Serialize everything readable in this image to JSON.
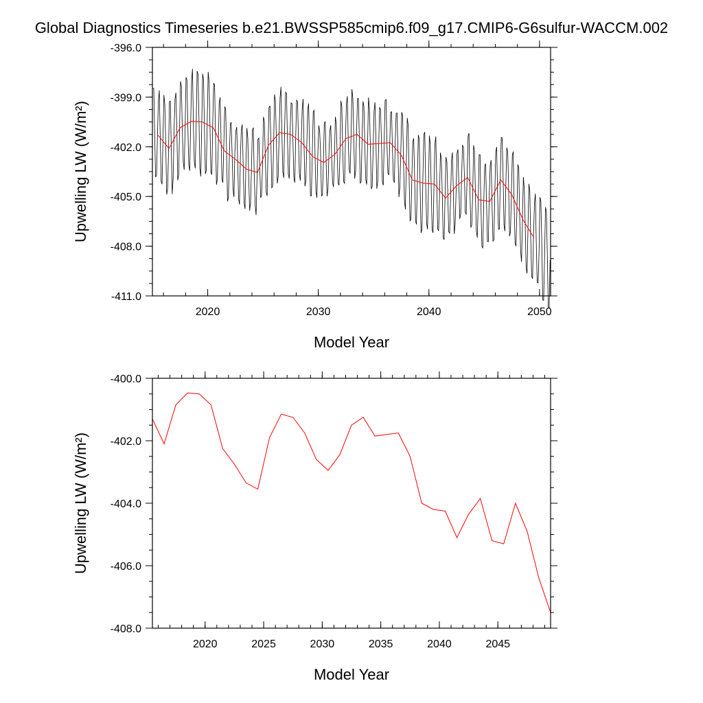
{
  "title": "Global Diagnostics Timeseries b.e21.BWSSP585cmip6.f09_g17.CMIP6-G6sulfur-WACCM.002",
  "colors": {
    "monthly": "#000000",
    "annual": "#ff0000"
  },
  "chart_data": [
    {
      "type": "line",
      "xlabel": "Model Year",
      "ylabel": "Upwelling LW (W/m²)",
      "xlim": [
        2015,
        2051
      ],
      "ylim": [
        -411.0,
        -396.0
      ],
      "xticks": [
        2020,
        2030,
        2040,
        2050
      ],
      "xtick_labels": [
        "2020",
        "2030",
        "2040",
        "2050"
      ],
      "yticks": [
        -396.0,
        -399.0,
        -402.0,
        -405.0,
        -408.0,
        -411.0
      ],
      "ytick_labels": [
        "-396.0",
        "-399.0",
        "-402.0",
        "-405.0",
        "-408.0",
        "-411.0"
      ],
      "grid": false,
      "series": [
        {
          "style": "monthly",
          "x_start": 2015.04,
          "x_step": 0.08333,
          "seasonal_amplitude": [
            3.0,
            3.3,
            3.2,
            3.4,
            3.6,
            3.4,
            3.0,
            2.6,
            2.6,
            2.8,
            3.0,
            3.1,
            2.8,
            2.9,
            3.0,
            2.6,
            2.5,
            2.8,
            3.1,
            3.0,
            2.8,
            2.7,
            2.9,
            3.2,
            3.3,
            3.1,
            2.9,
            2.8,
            3.0,
            3.1,
            3.0,
            3.2,
            3.0,
            2.9,
            3.1,
            3.2
          ]
        },
        {
          "style": "annual",
          "x": [
            2015.5,
            2016.5,
            2017.5,
            2018.5,
            2019.5,
            2020.5,
            2021.5,
            2022.5,
            2023.5,
            2024.5,
            2025.5,
            2026.5,
            2027.5,
            2028.5,
            2029.5,
            2030.5,
            2031.5,
            2032.5,
            2033.5,
            2034.5,
            2035.5,
            2036.5,
            2037.5,
            2038.5,
            2039.5,
            2040.5,
            2041.5,
            2042.5,
            2043.5,
            2044.5,
            2045.5,
            2046.5,
            2047.5,
            2048.5,
            2049.5
          ],
          "y": [
            -401.3,
            -402.1,
            -400.85,
            -400.47,
            -400.5,
            -400.85,
            -402.25,
            -402.75,
            -403.35,
            -403.55,
            -401.9,
            -401.15,
            -401.25,
            -401.75,
            -402.6,
            -402.95,
            -402.45,
            -401.5,
            -401.25,
            -401.85,
            -401.8,
            -401.75,
            -402.5,
            -404.0,
            -404.2,
            -404.25,
            -405.1,
            -404.35,
            -403.85,
            -405.2,
            -405.3,
            -404.0,
            -404.9,
            -406.4,
            -407.5
          ]
        }
      ]
    },
    {
      "type": "line",
      "xlabel": "Model Year",
      "ylabel": "Upwelling LW (W/m²)",
      "xlim": [
        2015.5,
        2049.5
      ],
      "ylim": [
        -408.0,
        -400.0
      ],
      "xticks": [
        2020,
        2025,
        2030,
        2035,
        2040,
        2045
      ],
      "xtick_labels": [
        "2020",
        "2025",
        "2030",
        "2035",
        "2040",
        "2045"
      ],
      "yticks": [
        -400.0,
        -402.0,
        -404.0,
        -406.0,
        -408.0
      ],
      "ytick_labels": [
        "-400.0",
        "-402.0",
        "-404.0",
        "-406.0",
        "-408.0"
      ],
      "grid": false,
      "series": [
        {
          "style": "annual",
          "x": [
            2015.5,
            2016.5,
            2017.5,
            2018.5,
            2019.5,
            2020.5,
            2021.5,
            2022.5,
            2023.5,
            2024.5,
            2025.5,
            2026.5,
            2027.5,
            2028.5,
            2029.5,
            2030.5,
            2031.5,
            2032.5,
            2033.5,
            2034.5,
            2035.5,
            2036.5,
            2037.5,
            2038.5,
            2039.5,
            2040.5,
            2041.5,
            2042.5,
            2043.5,
            2044.5,
            2045.5,
            2046.5,
            2047.5,
            2048.5,
            2049.5
          ],
          "y": [
            -401.3,
            -402.1,
            -400.85,
            -400.47,
            -400.5,
            -400.85,
            -402.25,
            -402.75,
            -403.35,
            -403.55,
            -401.9,
            -401.15,
            -401.25,
            -401.75,
            -402.6,
            -402.95,
            -402.45,
            -401.5,
            -401.25,
            -401.85,
            -401.8,
            -401.75,
            -402.5,
            -404.0,
            -404.2,
            -404.25,
            -405.1,
            -404.35,
            -403.85,
            -405.2,
            -405.3,
            -404.0,
            -404.9,
            -406.4,
            -407.5
          ]
        }
      ]
    }
  ]
}
